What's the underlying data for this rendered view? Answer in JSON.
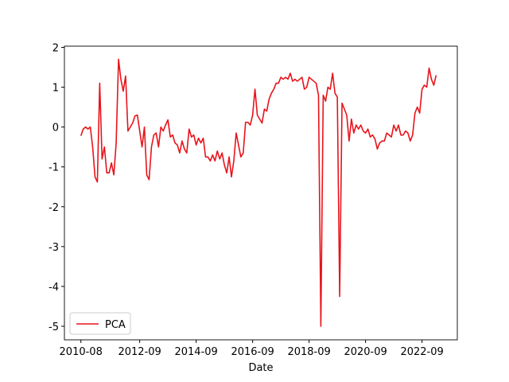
{
  "chart_data": {
    "type": "line",
    "x_label": "Date",
    "x": [
      "2010-08",
      "2010-09",
      "2010-10",
      "2010-11",
      "2010-12",
      "2011-01",
      "2011-02",
      "2011-03",
      "2011-04",
      "2011-05",
      "2011-06",
      "2011-07",
      "2011-08",
      "2011-09",
      "2011-10",
      "2011-11",
      "2011-12",
      "2012-01",
      "2012-02",
      "2012-03",
      "2012-04",
      "2012-05",
      "2012-06",
      "2012-07",
      "2012-08",
      "2012-09",
      "2012-10",
      "2012-11",
      "2012-12",
      "2013-01",
      "2013-02",
      "2013-03",
      "2013-04",
      "2013-05",
      "2013-06",
      "2013-07",
      "2013-08",
      "2013-09",
      "2013-10",
      "2013-11",
      "2013-12",
      "2014-01",
      "2014-02",
      "2014-03",
      "2014-04",
      "2014-05",
      "2014-06",
      "2014-07",
      "2014-08",
      "2014-09",
      "2014-10",
      "2014-11",
      "2014-12",
      "2015-01",
      "2015-02",
      "2015-03",
      "2015-04",
      "2015-05",
      "2015-06",
      "2015-07",
      "2015-08",
      "2015-09",
      "2015-10",
      "2015-11",
      "2015-12",
      "2016-01",
      "2016-02",
      "2016-03",
      "2016-04",
      "2016-05",
      "2016-06",
      "2016-07",
      "2016-08",
      "2016-09",
      "2016-10",
      "2016-11",
      "2016-12",
      "2017-01",
      "2017-02",
      "2017-03",
      "2017-04",
      "2017-05",
      "2017-06",
      "2017-07",
      "2017-08",
      "2017-09",
      "2017-10",
      "2017-11",
      "2017-12",
      "2018-01",
      "2018-02",
      "2018-03",
      "2018-04",
      "2018-05",
      "2018-06",
      "2018-07",
      "2018-08",
      "2018-09",
      "2018-10",
      "2018-11",
      "2018-12",
      "2019-01",
      "2019-02",
      "2019-03",
      "2019-04",
      "2019-05",
      "2019-06",
      "2019-07",
      "2019-08",
      "2019-09",
      "2019-10",
      "2019-11",
      "2019-12",
      "2020-01",
      "2020-02",
      "2020-03",
      "2020-04",
      "2020-05",
      "2020-06",
      "2020-07",
      "2020-08",
      "2020-09",
      "2020-10",
      "2020-11",
      "2020-12",
      "2021-01",
      "2021-02",
      "2021-03",
      "2021-04",
      "2021-05",
      "2021-06",
      "2021-07",
      "2021-08",
      "2021-09",
      "2021-10",
      "2021-11",
      "2021-12",
      "2022-01",
      "2022-02",
      "2022-03",
      "2022-04",
      "2022-05",
      "2022-06",
      "2022-07",
      "2022-08",
      "2022-09",
      "2022-10",
      "2022-11",
      "2022-12",
      "2023-01",
      "2023-02",
      "2023-03"
    ],
    "series": [
      {
        "name": "PCA",
        "color": "#e8141b",
        "values": [
          -0.22,
          -0.05,
          0.0,
          -0.05,
          0.0,
          -0.5,
          -1.25,
          -1.38,
          1.1,
          -0.8,
          -0.5,
          -1.15,
          -1.15,
          -0.9,
          -1.2,
          -0.4,
          1.7,
          1.2,
          0.9,
          1.28,
          -0.1,
          0.0,
          0.1,
          0.28,
          0.3,
          -0.1,
          -0.5,
          0.0,
          -1.2,
          -1.32,
          -0.5,
          -0.2,
          -0.15,
          -0.5,
          0.0,
          -0.1,
          0.05,
          0.18,
          -0.25,
          -0.2,
          -0.4,
          -0.45,
          -0.65,
          -0.35,
          -0.55,
          -0.65,
          -0.05,
          -0.25,
          -0.2,
          -0.45,
          -0.28,
          -0.4,
          -0.28,
          -0.75,
          -0.75,
          -0.85,
          -0.7,
          -0.85,
          -0.6,
          -0.8,
          -0.65,
          -0.95,
          -1.15,
          -0.75,
          -1.25,
          -0.85,
          -0.15,
          -0.45,
          -0.75,
          -0.65,
          0.12,
          0.12,
          0.05,
          0.3,
          0.95,
          0.3,
          0.2,
          0.1,
          0.45,
          0.4,
          0.7,
          0.85,
          0.95,
          1.1,
          1.1,
          1.25,
          1.2,
          1.25,
          1.2,
          1.35,
          1.15,
          1.2,
          1.15,
          1.2,
          1.25,
          0.95,
          1.0,
          1.25,
          1.2,
          1.15,
          1.1,
          0.8,
          -5.0,
          0.8,
          0.65,
          1.0,
          0.95,
          1.35,
          0.85,
          0.75,
          -4.25,
          0.6,
          0.45,
          0.3,
          -0.35,
          0.2,
          -0.15,
          0.05,
          -0.05,
          0.05,
          -0.1,
          -0.15,
          -0.05,
          -0.25,
          -0.2,
          -0.3,
          -0.55,
          -0.4,
          -0.35,
          -0.35,
          -0.15,
          -0.2,
          -0.25,
          0.05,
          -0.1,
          0.05,
          -0.2,
          -0.2,
          -0.1,
          -0.15,
          -0.35,
          -0.2,
          0.35,
          0.5,
          0.35,
          0.95,
          1.05,
          1.0,
          1.48,
          1.2,
          1.05,
          1.3
        ]
      }
    ],
    "xlim": [
      "2010-01",
      "2023-12"
    ],
    "xticks": [
      "2010-08",
      "2012-09",
      "2014-09",
      "2016-09",
      "2018-09",
      "2020-09",
      "2022-09"
    ],
    "ylim": [
      -5.34,
      2.03
    ],
    "yticks": [
      -5,
      -4,
      -3,
      -2,
      -1,
      0,
      1,
      2
    ],
    "legend": "lower left"
  }
}
